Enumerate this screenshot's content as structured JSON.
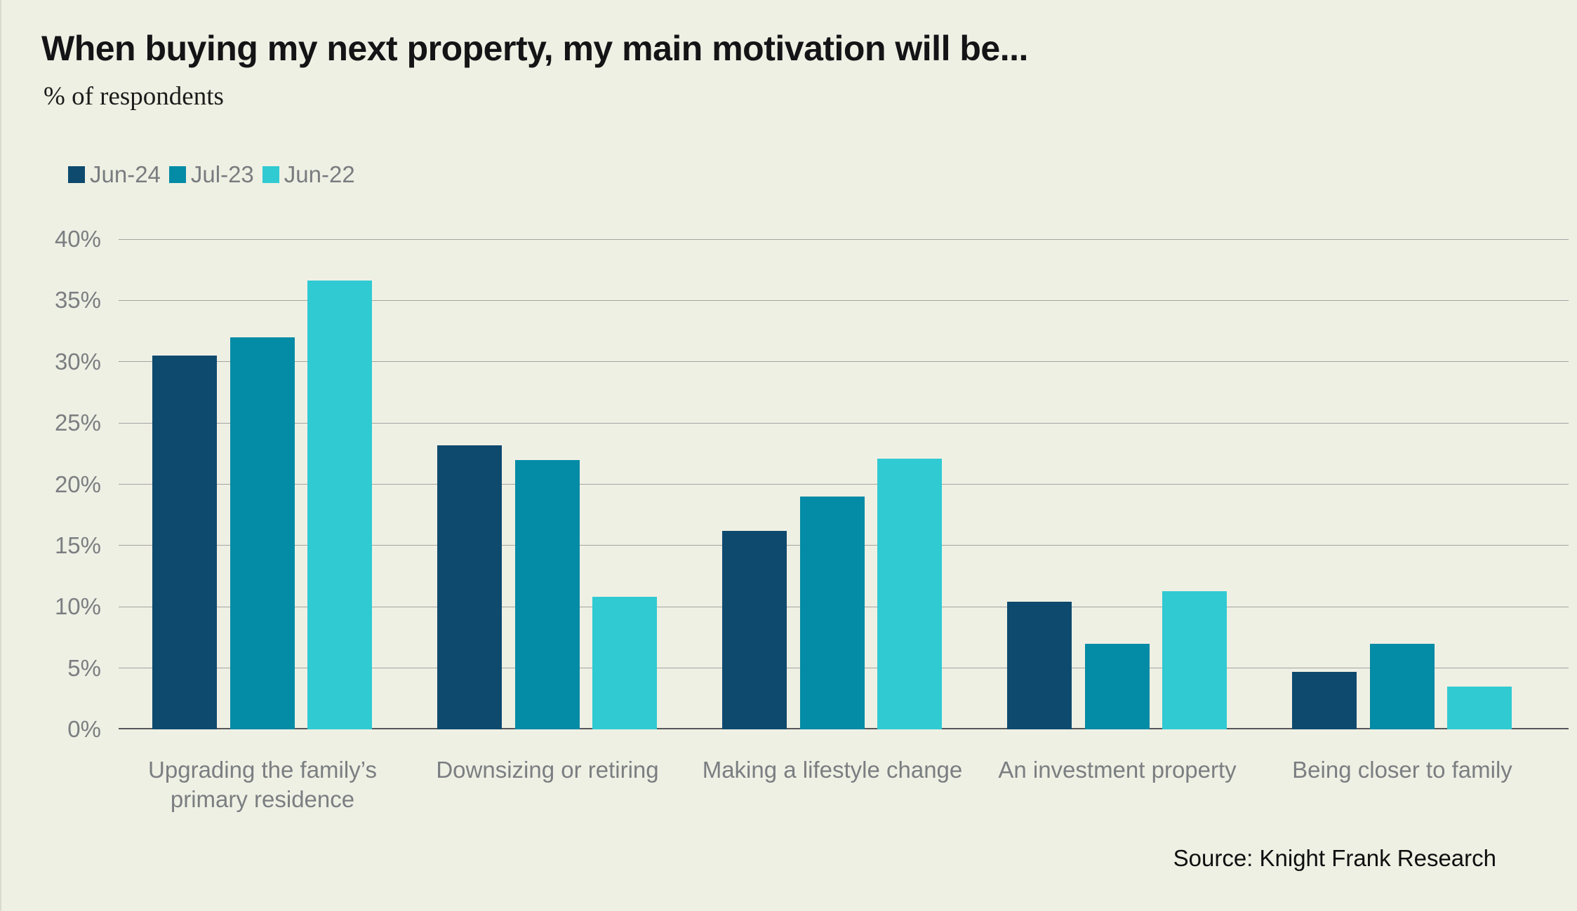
{
  "page": {
    "title": "When buying my next property, my main motivation will be...",
    "subtitle": "% of respondents",
    "source": "Source: Knight Frank Research"
  },
  "colors": {
    "background": "#eff0e4",
    "title_text": "#141416",
    "label_gray": "#7b7e81",
    "gridline": "#a2a4a1",
    "axis_line": "#55575a",
    "series_jun24": "#0e4a6e",
    "series_jul23": "#048ba6",
    "series_jun22": "#30cad2"
  },
  "chart_data": {
    "type": "bar",
    "title": "When buying my next property, my main motivation will be...",
    "subtitle": "% of respondents",
    "categories": [
      "Upgrading the family’s primary residence",
      "Downsizing or retiring",
      "Making a lifestyle change",
      "An investment property",
      "Being closer to family"
    ],
    "series": [
      {
        "name": "Jun-24",
        "color": "#0e4a6e",
        "values": [
          30.5,
          23.2,
          16.2,
          10.4,
          4.7
        ]
      },
      {
        "name": "Jul-23",
        "color": "#048ba6",
        "values": [
          32.0,
          22.0,
          19.0,
          7.0,
          7.0
        ]
      },
      {
        "name": "Jun-22",
        "color": "#30cad2",
        "values": [
          36.6,
          10.8,
          22.1,
          11.3,
          3.5
        ]
      }
    ],
    "xlabel": "",
    "ylabel": "% of respondents",
    "ylim": [
      0,
      40
    ],
    "ytick_step": 5,
    "ytick_suffix": "%",
    "grid": true,
    "legend_position": "top-left",
    "source": "Source: Knight Frank Research"
  }
}
